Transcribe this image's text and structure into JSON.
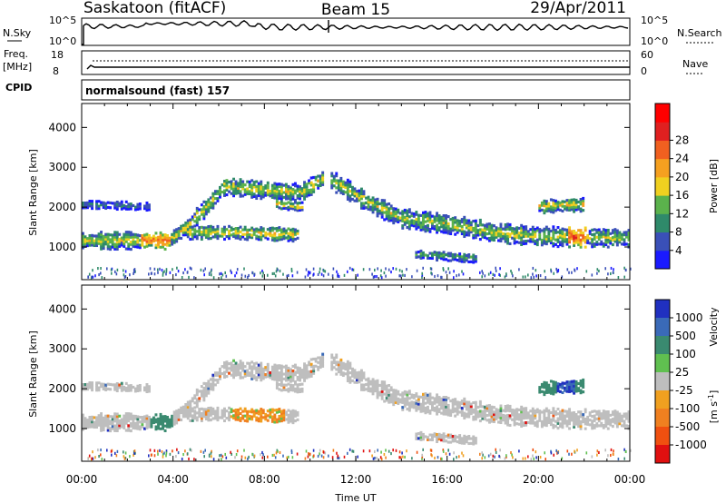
{
  "header": {
    "station": "Saskatoon (fitACF)",
    "beam": "Beam 15",
    "date": "29/Apr/2011"
  },
  "noise_panel": {
    "left_label": "N.Sky",
    "right_label": "N.Search",
    "ticks_left": [
      "10^5",
      "10^0"
    ],
    "ticks_right": [
      "10^5",
      "10^0"
    ]
  },
  "freq_panel": {
    "left_label_top": "Freq.",
    "left_label_bottom": "[MHz]",
    "right_label": "Nave",
    "ticks_left": [
      "18",
      "8"
    ],
    "ticks_right": [
      "60",
      "0"
    ]
  },
  "cpid": {
    "label": "CPID",
    "value": "normalsound (fast) 157"
  },
  "chart_data": [
    {
      "type": "heatmap",
      "ylabel": "Slant Range [km]",
      "y_ticks": [
        1000,
        2000,
        3000,
        4000
      ],
      "ylim": [
        180,
        4600
      ],
      "colorbar": {
        "label": "Power [dB]",
        "ticks": [
          "4",
          "8",
          "12",
          "16",
          "20",
          "24",
          "28"
        ],
        "range": [
          0,
          32
        ],
        "colors": [
          "#1a1aff",
          "#3a50b8",
          "#2f8a6a",
          "#5bb24c",
          "#f0d020",
          "#f5a020",
          "#f06020",
          "#e02020",
          "#ff0000"
        ]
      }
    },
    {
      "type": "heatmap",
      "ylabel": "Slant Range [km]",
      "y_ticks": [
        1000,
        2000,
        3000,
        4000
      ],
      "ylim": [
        180,
        4600
      ],
      "xlabel": "Time UT",
      "x_ticks": [
        "00:00",
        "04:00",
        "08:00",
        "12:00",
        "16:00",
        "20:00",
        "00:00"
      ],
      "colorbar": {
        "label": "Velocity",
        "unit": "[m s",
        "unit_exp": "-1",
        "unit_close": "]",
        "ticks": [
          "1000",
          "500",
          "100",
          "25",
          "-25",
          "-100",
          "-500",
          "-1000"
        ],
        "colors": [
          "#2030c0",
          "#3a6ab8",
          "#3a8a70",
          "#60c050",
          "#bebebe",
          "#f0a020",
          "#f08020",
          "#f05010",
          "#e01010"
        ]
      }
    }
  ]
}
